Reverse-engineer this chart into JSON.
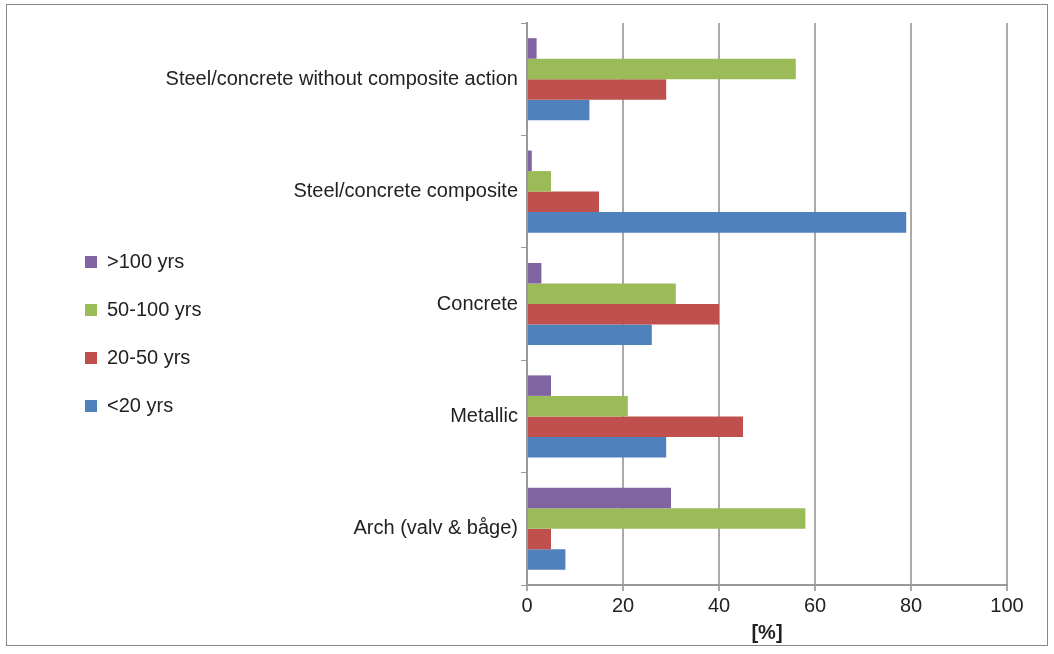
{
  "chart_data": {
    "type": "bar",
    "orientation": "horizontal",
    "xlabel": "[%]",
    "categories": [
      "Steel/concrete without composite action",
      "Steel/concrete composite",
      "Concrete",
      "Metallic",
      "Arch (valv & båge)"
    ],
    "series": [
      {
        "name": ">100 yrs",
        "color": "#8064a2",
        "values": [
          2,
          1,
          3,
          5,
          30
        ]
      },
      {
        "name": "50-100 yrs",
        "color": "#9bbb59",
        "values": [
          56,
          5,
          31,
          21,
          58
        ]
      },
      {
        "name": "20-50 yrs",
        "color": "#c0504d",
        "values": [
          29,
          15,
          40,
          45,
          5
        ]
      },
      {
        "name": "<20 yrs",
        "color": "#4f81bd",
        "values": [
          13,
          79,
          26,
          29,
          8
        ]
      }
    ],
    "xlim": [
      0,
      100
    ],
    "xticks": [
      0,
      20,
      40,
      60,
      80,
      100
    ],
    "grid": "x",
    "legend": "left"
  }
}
